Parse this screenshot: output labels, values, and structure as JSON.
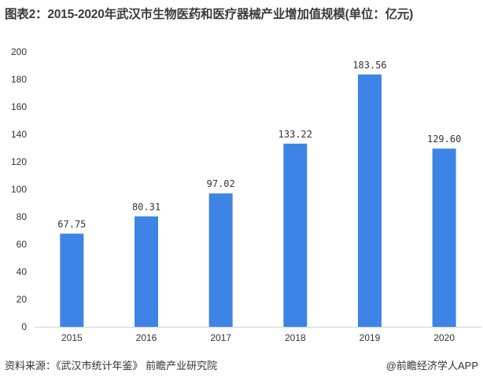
{
  "title": "图表2：2015-2020年武汉市生物医药和医疗器械产业增加值规模(单位：亿元)",
  "chart_data": {
    "type": "bar",
    "categories": [
      "2015",
      "2016",
      "2017",
      "2018",
      "2019",
      "2020"
    ],
    "values": [
      67.75,
      80.31,
      97.02,
      133.22,
      183.56,
      129.6
    ],
    "value_labels": [
      "67.75",
      "80.31",
      "97.02",
      "133.22",
      "183.56",
      "129.60"
    ],
    "ylim": [
      0,
      200
    ],
    "yticks": [
      0,
      20,
      40,
      60,
      80,
      100,
      120,
      140,
      160,
      180,
      200
    ],
    "grid": false,
    "bar_color": "#3d84e6"
  },
  "footer": {
    "source": "资料来源：《武汉市统计年鉴》 前瞻产业研究院",
    "brand": "@前瞻经济学人APP"
  }
}
